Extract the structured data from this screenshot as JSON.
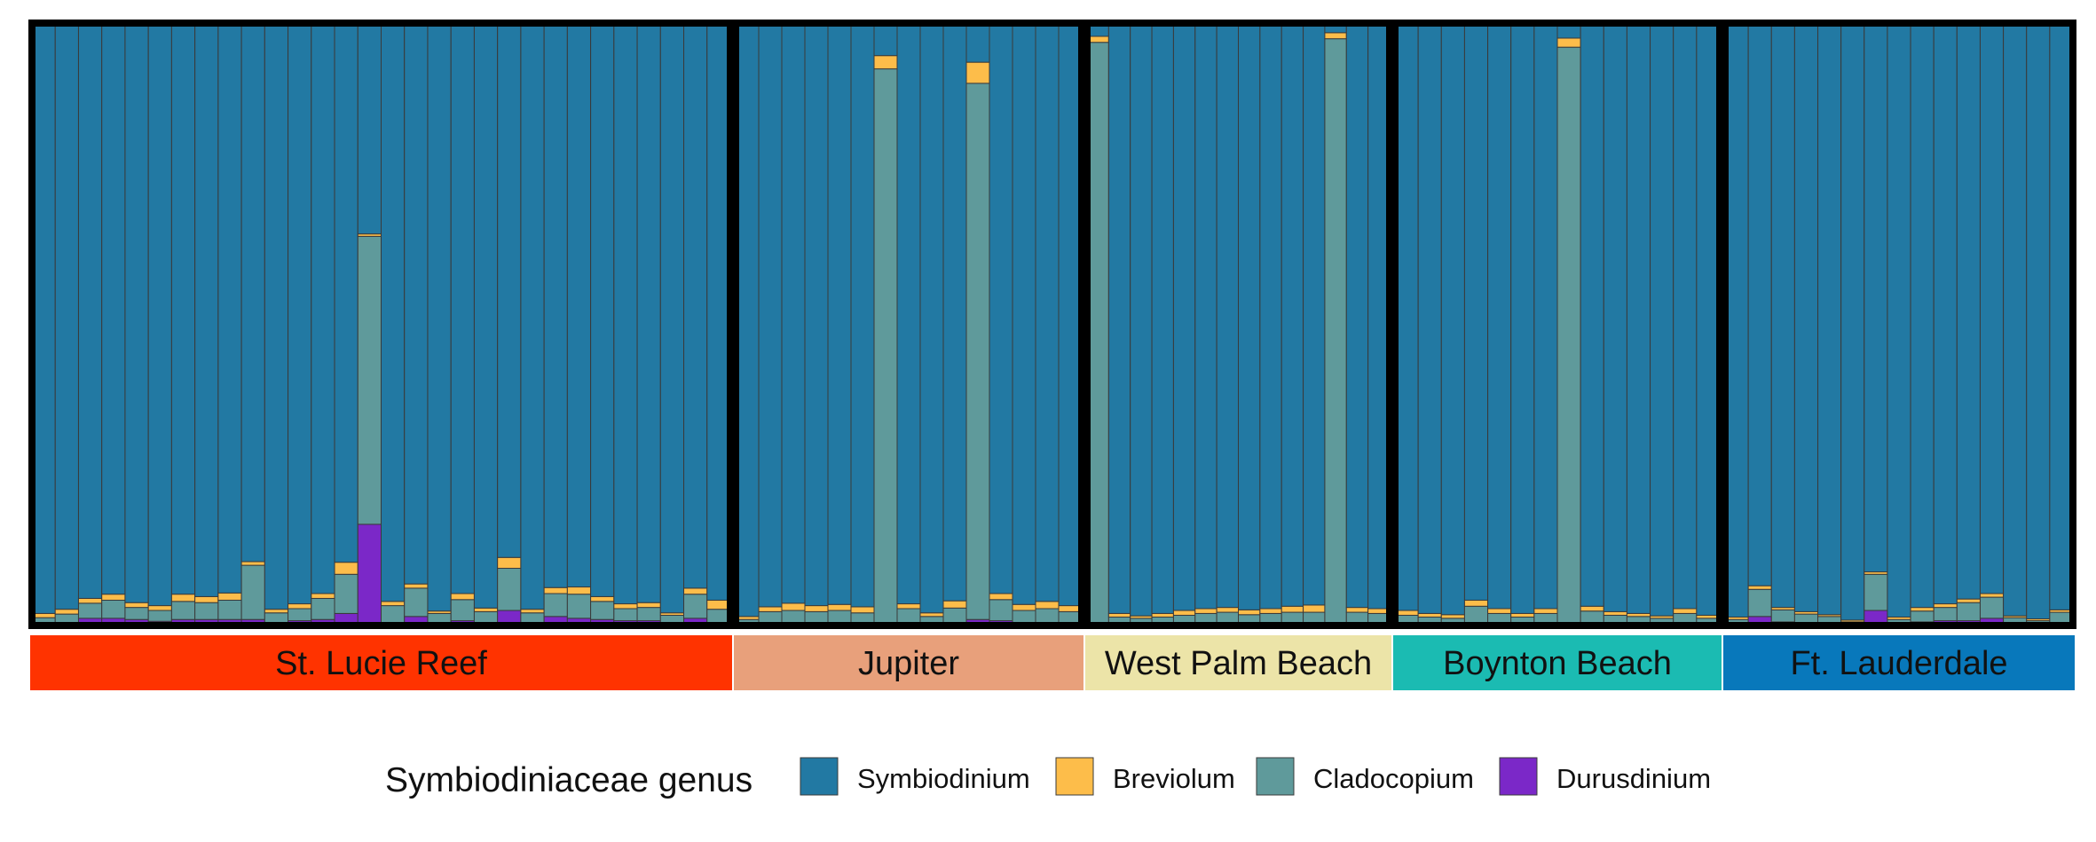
{
  "chart_data": {
    "type": "bar",
    "stacked": true,
    "ylim": [
      0,
      1
    ],
    "grid": false,
    "legend_position": "bottom",
    "legend": {
      "title": "Symbiodiniaceae genus",
      "entries": [
        {
          "key": "durusdinium",
          "label": "Durusdinium",
          "color": "#7b28c8"
        },
        {
          "key": "cladocopium",
          "label": "Cladocopium",
          "color": "#5f9a9b"
        },
        {
          "key": "breviolum",
          "label": "Breviolum",
          "color": "#fdbd4a"
        },
        {
          "key": "symbiodinium",
          "label": "Symbiodinium",
          "color": "#2279a3"
        }
      ]
    },
    "stack_order": [
      "durusdinium",
      "cladocopium",
      "breviolum",
      "symbiodinium"
    ],
    "panels": [
      {
        "site": "St. Lucie Reef",
        "strip_color": "#ff3300",
        "samples": [
          {
            "durusdinium": 0.005,
            "cladocopium": 0.008,
            "breviolum": 0.007
          },
          {
            "durusdinium": 0.005,
            "cladocopium": 0.014,
            "breviolum": 0.008
          },
          {
            "durusdinium": 0.012,
            "cladocopium": 0.025,
            "breviolum": 0.008
          },
          {
            "durusdinium": 0.012,
            "cladocopium": 0.03,
            "breviolum": 0.01
          },
          {
            "durusdinium": 0.01,
            "cladocopium": 0.02,
            "breviolum": 0.008
          },
          {
            "durusdinium": 0.007,
            "cladocopium": 0.018,
            "breviolum": 0.008
          },
          {
            "durusdinium": 0.01,
            "cladocopium": 0.03,
            "breviolum": 0.012
          },
          {
            "durusdinium": 0.01,
            "cladocopium": 0.028,
            "breviolum": 0.01
          },
          {
            "durusdinium": 0.01,
            "cladocopium": 0.032,
            "breviolum": 0.012
          },
          {
            "durusdinium": 0.01,
            "cladocopium": 0.09,
            "breviolum": 0.006
          },
          {
            "durusdinium": 0.005,
            "cladocopium": 0.016,
            "breviolum": 0.006
          },
          {
            "durusdinium": 0.008,
            "cladocopium": 0.02,
            "breviolum": 0.008
          },
          {
            "durusdinium": 0.01,
            "cladocopium": 0.035,
            "breviolum": 0.008
          },
          {
            "durusdinium": 0.02,
            "cladocopium": 0.065,
            "breviolum": 0.02
          },
          {
            "durusdinium": 0.168,
            "cladocopium": 0.478,
            "breviolum": 0.004
          },
          {
            "durusdinium": 0.005,
            "cladocopium": 0.028,
            "breviolum": 0.007
          },
          {
            "durusdinium": 0.015,
            "cladocopium": 0.047,
            "breviolum": 0.007
          },
          {
            "durusdinium": 0.005,
            "cladocopium": 0.015,
            "breviolum": 0.004
          },
          {
            "durusdinium": 0.008,
            "cladocopium": 0.035,
            "breviolum": 0.01
          },
          {
            "durusdinium": 0.005,
            "cladocopium": 0.018,
            "breviolum": 0.006
          },
          {
            "durusdinium": 0.025,
            "cladocopium": 0.07,
            "breviolum": 0.018
          },
          {
            "durusdinium": 0.005,
            "cladocopium": 0.016,
            "breviolum": 0.006
          },
          {
            "durusdinium": 0.015,
            "cladocopium": 0.038,
            "breviolum": 0.01
          },
          {
            "durusdinium": 0.012,
            "cladocopium": 0.04,
            "breviolum": 0.012
          },
          {
            "durusdinium": 0.01,
            "cladocopium": 0.03,
            "breviolum": 0.008
          },
          {
            "durusdinium": 0.008,
            "cladocopium": 0.02,
            "breviolum": 0.008
          },
          {
            "durusdinium": 0.008,
            "cladocopium": 0.022,
            "breviolum": 0.008
          },
          {
            "durusdinium": 0.005,
            "cladocopium": 0.012,
            "breviolum": 0.004
          },
          {
            "durusdinium": 0.012,
            "cladocopium": 0.04,
            "breviolum": 0.01
          },
          {
            "durusdinium": 0.005,
            "cladocopium": 0.022,
            "breviolum": 0.015
          }
        ]
      },
      {
        "site": "Jupiter",
        "strip_color": "#e8a07b",
        "samples": [
          {
            "durusdinium": 0.002,
            "cladocopium": 0.008,
            "breviolum": 0.005
          },
          {
            "durusdinium": 0.003,
            "cladocopium": 0.02,
            "breviolum": 0.008
          },
          {
            "durusdinium": 0.003,
            "cladocopium": 0.022,
            "breviolum": 0.012
          },
          {
            "durusdinium": 0.003,
            "cladocopium": 0.02,
            "breviolum": 0.01
          },
          {
            "durusdinium": 0.003,
            "cladocopium": 0.022,
            "breviolum": 0.01
          },
          {
            "durusdinium": 0.003,
            "cladocopium": 0.018,
            "breviolum": 0.01
          },
          {
            "durusdinium": 0.004,
            "cladocopium": 0.92,
            "breviolum": 0.022
          },
          {
            "durusdinium": 0.003,
            "cladocopium": 0.025,
            "breviolum": 0.008
          },
          {
            "durusdinium": 0.003,
            "cladocopium": 0.012,
            "breviolum": 0.006
          },
          {
            "durusdinium": 0.004,
            "cladocopium": 0.025,
            "breviolum": 0.012
          },
          {
            "durusdinium": 0.01,
            "cladocopium": 0.89,
            "breviolum": 0.035
          },
          {
            "durusdinium": 0.008,
            "cladocopium": 0.035,
            "breviolum": 0.01
          },
          {
            "durusdinium": 0.003,
            "cladocopium": 0.022,
            "breviolum": 0.01
          },
          {
            "durusdinium": 0.003,
            "cladocopium": 0.025,
            "breviolum": 0.012
          },
          {
            "durusdinium": 0.003,
            "cladocopium": 0.02,
            "breviolum": 0.01
          }
        ]
      },
      {
        "site": "West Palm Beach",
        "strip_color": "#ece4a8",
        "samples": [
          {
            "durusdinium": 0.003,
            "cladocopium": 0.965,
            "breviolum": 0.01
          },
          {
            "durusdinium": 0.002,
            "cladocopium": 0.012,
            "breviolum": 0.006
          },
          {
            "durusdinium": 0.002,
            "cladocopium": 0.01,
            "breviolum": 0.004
          },
          {
            "durusdinium": 0.002,
            "cladocopium": 0.012,
            "breviolum": 0.006
          },
          {
            "durusdinium": 0.002,
            "cladocopium": 0.015,
            "breviolum": 0.008
          },
          {
            "durusdinium": 0.002,
            "cladocopium": 0.018,
            "breviolum": 0.008
          },
          {
            "durusdinium": 0.002,
            "cladocopium": 0.02,
            "breviolum": 0.008
          },
          {
            "durusdinium": 0.002,
            "cladocopium": 0.016,
            "breviolum": 0.008
          },
          {
            "durusdinium": 0.002,
            "cladocopium": 0.018,
            "breviolum": 0.008
          },
          {
            "durusdinium": 0.002,
            "cladocopium": 0.02,
            "breviolum": 0.01
          },
          {
            "durusdinium": 0.002,
            "cladocopium": 0.02,
            "breviolum": 0.012
          },
          {
            "durusdinium": 0.004,
            "cladocopium": 0.97,
            "breviolum": 0.01
          },
          {
            "durusdinium": 0.002,
            "cladocopium": 0.02,
            "breviolum": 0.008
          },
          {
            "durusdinium": 0.002,
            "cladocopium": 0.018,
            "breviolum": 0.008
          }
        ]
      },
      {
        "site": "Boynton Beach",
        "strip_color": "#1bbbb2",
        "samples": [
          {
            "durusdinium": 0.002,
            "cladocopium": 0.015,
            "breviolum": 0.008
          },
          {
            "durusdinium": 0.002,
            "cladocopium": 0.012,
            "breviolum": 0.006
          },
          {
            "durusdinium": 0.002,
            "cladocopium": 0.01,
            "breviolum": 0.006
          },
          {
            "durusdinium": 0.002,
            "cladocopium": 0.03,
            "breviolum": 0.01
          },
          {
            "durusdinium": 0.002,
            "cladocopium": 0.018,
            "breviolum": 0.008
          },
          {
            "durusdinium": 0.002,
            "cladocopium": 0.012,
            "breviolum": 0.006
          },
          {
            "durusdinium": 0.002,
            "cladocopium": 0.018,
            "breviolum": 0.008
          },
          {
            "durusdinium": 0.005,
            "cladocopium": 0.955,
            "breviolum": 0.015
          },
          {
            "durusdinium": 0.002,
            "cladocopium": 0.022,
            "breviolum": 0.008
          },
          {
            "durusdinium": 0.002,
            "cladocopium": 0.015,
            "breviolum": 0.006
          },
          {
            "durusdinium": 0.002,
            "cladocopium": 0.013,
            "breviolum": 0.005
          },
          {
            "durusdinium": 0.002,
            "cladocopium": 0.01,
            "breviolum": 0.004
          },
          {
            "durusdinium": 0.002,
            "cladocopium": 0.018,
            "breviolum": 0.008
          },
          {
            "durusdinium": 0.002,
            "cladocopium": 0.01,
            "breviolum": 0.005
          }
        ]
      },
      {
        "site": "Ft. Lauderdale",
        "strip_color": "#0878bb",
        "samples": [
          {
            "durusdinium": 0.002,
            "cladocopium": 0.008,
            "breviolum": 0.004
          },
          {
            "durusdinium": 0.015,
            "cladocopium": 0.045,
            "breviolum": 0.006
          },
          {
            "durusdinium": 0.006,
            "cladocopium": 0.02,
            "breviolum": 0.004
          },
          {
            "durusdinium": 0.004,
            "cladocopium": 0.015,
            "breviolum": 0.004
          },
          {
            "durusdinium": 0.003,
            "cladocopium": 0.012,
            "breviolum": 0.003
          },
          {
            "durusdinium": 0.002,
            "cladocopium": 0.004,
            "breviolum": 0.003
          },
          {
            "durusdinium": 0.025,
            "cladocopium": 0.06,
            "breviolum": 0.004
          },
          {
            "durusdinium": 0.002,
            "cladocopium": 0.008,
            "breviolum": 0.004
          },
          {
            "durusdinium": 0.006,
            "cladocopium": 0.018,
            "breviolum": 0.006
          },
          {
            "durusdinium": 0.008,
            "cladocopium": 0.022,
            "breviolum": 0.006
          },
          {
            "durusdinium": 0.008,
            "cladocopium": 0.03,
            "breviolum": 0.006
          },
          {
            "durusdinium": 0.012,
            "cladocopium": 0.035,
            "breviolum": 0.006
          },
          {
            "durusdinium": 0.003,
            "cladocopium": 0.01,
            "breviolum": 0.003
          },
          {
            "durusdinium": 0.002,
            "cladocopium": 0.006,
            "breviolum": 0.003
          },
          {
            "durusdinium": 0.004,
            "cladocopium": 0.018,
            "breviolum": 0.004
          }
        ]
      }
    ]
  }
}
